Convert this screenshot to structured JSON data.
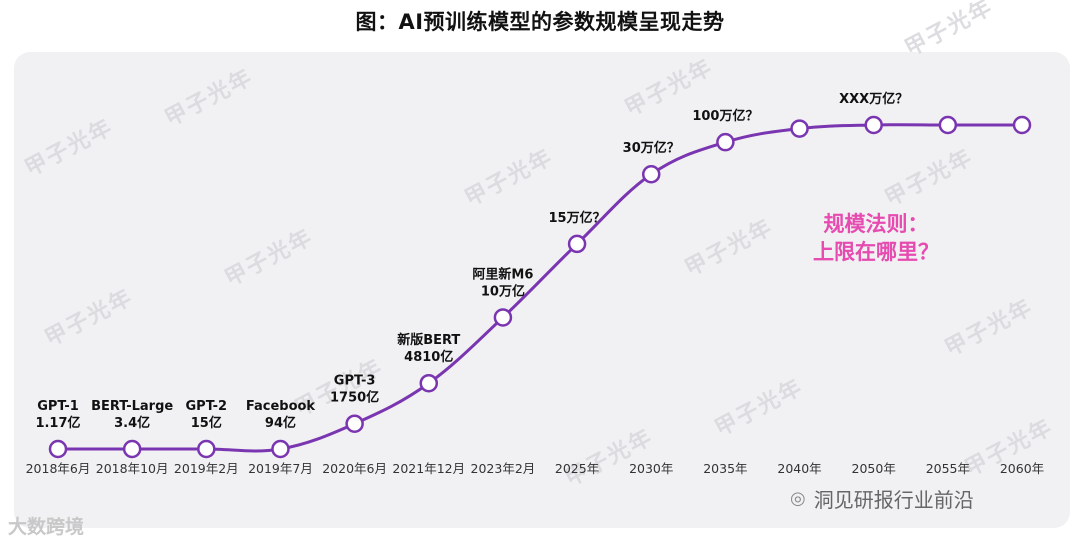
{
  "title": "图：AI预训练模型的参数规模呈现走势",
  "annotation": {
    "line1": "规模法则：",
    "line2": "上限在哪里？",
    "color": "#e64cb0"
  },
  "watermark": "甲子光年",
  "footer": {
    "left": "大数跨境",
    "right": "洞见研报行业前沿"
  },
  "colors": {
    "line": "#7a35b0",
    "marker_fill": "#ffffff",
    "panel": "#f1f1f3"
  },
  "chart_data": {
    "type": "line",
    "title": "图：AI预训练模型的参数规模呈现走势",
    "x_categories": [
      "2018年6月",
      "2018年10月",
      "2019年2月",
      "2019年7月",
      "2020年6月",
      "2021年12月",
      "2023年2月",
      "2025年",
      "2030年",
      "2035年",
      "2040年",
      "2050年",
      "2055年",
      "2060年"
    ],
    "points": [
      {
        "x": "2018年6月",
        "label": [
          "GPT-1",
          "1.17亿"
        ]
      },
      {
        "x": "2018年10月",
        "label": [
          "BERT-Large",
          "3.4亿"
        ]
      },
      {
        "x": "2019年2月",
        "label": [
          "GPT-2",
          "15亿"
        ]
      },
      {
        "x": "2019年7月",
        "label": [
          "Facebook",
          "94亿"
        ]
      },
      {
        "x": "2020年6月",
        "label": [
          "GPT-3",
          "1750亿"
        ]
      },
      {
        "x": "2021年12月",
        "label": [
          "新版BERT",
          "4810亿"
        ]
      },
      {
        "x": "2023年2月",
        "label": [
          "阿里新M6",
          "10万亿"
        ]
      },
      {
        "x": "2025年",
        "label": [
          "15万亿？"
        ]
      },
      {
        "x": "2030年",
        "label": [
          "30万亿？"
        ]
      },
      {
        "x": "2035年",
        "label": [
          "100万亿？"
        ]
      },
      {
        "x": "2040年",
        "label": []
      },
      {
        "x": "2050年",
        "label": [
          "XXX万亿？"
        ]
      },
      {
        "x": "2055年",
        "label": []
      },
      {
        "x": "2060年",
        "label": []
      }
    ],
    "relative_level": [
      0.0,
      0.0,
      0.0,
      0.0,
      0.078,
      0.203,
      0.406,
      0.633,
      0.848,
      0.947,
      0.989,
      1.0,
      1.0,
      1.0
    ],
    "y_axis": "none",
    "grid": false
  }
}
